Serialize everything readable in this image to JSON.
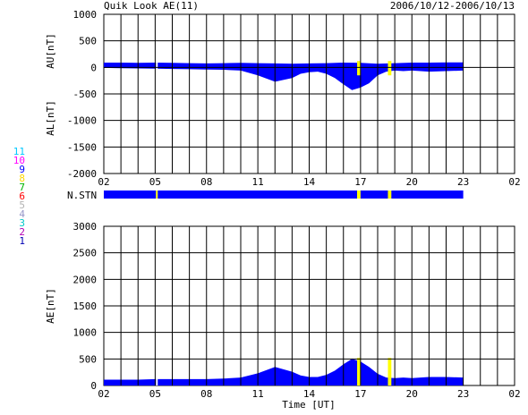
{
  "header": {
    "title": "Quik Look AE(11)",
    "date_range": "2006/10/12-2006/10/13"
  },
  "colors": {
    "fill": "#0000ff",
    "gap": "#ffff00",
    "grid": "#000000",
    "background": "#ffffff"
  },
  "station_legend": [
    {
      "label": "11",
      "color": "#00c8ff"
    },
    {
      "label": "10",
      "color": "#ff00ff"
    },
    {
      "label": "9",
      "color": "#0000ff"
    },
    {
      "label": "8",
      "color": "#ffd700"
    },
    {
      "label": "7",
      "color": "#00b400"
    },
    {
      "label": "6",
      "color": "#ff0000"
    },
    {
      "label": "5",
      "color": "#b4b4b4"
    },
    {
      "label": "4",
      "color": "#9696c8"
    },
    {
      "label": "3",
      "color": "#00c8c8"
    },
    {
      "label": "2",
      "color": "#b400b4"
    },
    {
      "label": "1",
      "color": "#0000b4"
    }
  ],
  "nstn_label": "N.STN",
  "xlabel": "Time [UT]",
  "chart_data": [
    {
      "type": "area",
      "panel": "AU/AL",
      "ylabel_top": "AU[nT]",
      "ylabel_bottom": "AL[nT]",
      "xlim": [
        0,
        24
      ],
      "ylim": [
        -2000,
        1000
      ],
      "x_ticks": [
        "02",
        "05",
        "08",
        "11",
        "14",
        "17",
        "20",
        "23",
        "02"
      ],
      "y_ticks": [
        "1000",
        "500",
        "0",
        "-500",
        "-1000",
        "-1500",
        "-2000"
      ],
      "grid": true,
      "data_end": 21,
      "gaps": [
        [
          3.05,
          3.15
        ],
        [
          14.8,
          15.0
        ],
        [
          16.6,
          16.8
        ]
      ],
      "au_series": {
        "name": "AU",
        "x": [
          0,
          1,
          2,
          3,
          4,
          5,
          6,
          7,
          8,
          9,
          10,
          11,
          12,
          13,
          14,
          15,
          16,
          17,
          18,
          19,
          20,
          21
        ],
        "values": [
          90,
          90,
          85,
          90,
          85,
          80,
          75,
          80,
          85,
          80,
          75,
          70,
          75,
          80,
          90,
          85,
          70,
          80,
          90,
          90,
          95,
          95
        ]
      },
      "al_series": {
        "name": "AL",
        "x": [
          0,
          1,
          2,
          3,
          4,
          5,
          6,
          7,
          8,
          9,
          10,
          11,
          11.5,
          12,
          12.5,
          13,
          13.5,
          14,
          14.5,
          15,
          15.5,
          16,
          16.5,
          17,
          17.5,
          18,
          19,
          20,
          21
        ],
        "values": [
          -10,
          -15,
          -20,
          -25,
          -30,
          -35,
          -40,
          -45,
          -60,
          -150,
          -270,
          -200,
          -120,
          -90,
          -80,
          -120,
          -200,
          -320,
          -430,
          -380,
          -300,
          -150,
          -80,
          -60,
          -70,
          -60,
          -80,
          -70,
          -60
        ]
      }
    },
    {
      "type": "bar",
      "panel": "N.STN",
      "xlim": [
        0,
        24
      ],
      "segments": [
        {
          "start": 0,
          "end": 3.05,
          "status": "data"
        },
        {
          "start": 3.05,
          "end": 3.15,
          "status": "gap"
        },
        {
          "start": 3.15,
          "end": 14.8,
          "status": "data"
        },
        {
          "start": 14.8,
          "end": 15.0,
          "status": "gap"
        },
        {
          "start": 15.0,
          "end": 16.6,
          "status": "data"
        },
        {
          "start": 16.6,
          "end": 16.8,
          "status": "gap"
        },
        {
          "start": 16.8,
          "end": 21.0,
          "status": "data"
        }
      ]
    },
    {
      "type": "area",
      "panel": "AE",
      "ylabel": "AE[nT]",
      "xlim": [
        0,
        24
      ],
      "ylim": [
        0,
        3000
      ],
      "x_ticks": [
        "02",
        "05",
        "08",
        "11",
        "14",
        "17",
        "20",
        "23",
        "02"
      ],
      "y_ticks": [
        "3000",
        "2500",
        "2000",
        "1500",
        "1000",
        "500",
        "0"
      ],
      "grid": true,
      "data_end": 21,
      "gaps": [
        [
          3.05,
          3.15
        ],
        [
          14.8,
          15.0
        ],
        [
          16.6,
          16.8
        ]
      ],
      "series": [
        {
          "name": "AE",
          "x": [
            0,
            1,
            2,
            3,
            4,
            5,
            6,
            7,
            8,
            9,
            10,
            11,
            11.5,
            12,
            12.5,
            13,
            13.5,
            14,
            14.5,
            15,
            15.5,
            16,
            16.5,
            17,
            17.5,
            18,
            19,
            20,
            21
          ],
          "values": [
            110,
            110,
            110,
            120,
            120,
            120,
            120,
            130,
            150,
            230,
            350,
            260,
            190,
            160,
            160,
            200,
            280,
            400,
            500,
            450,
            350,
            220,
            150,
            140,
            150,
            140,
            160,
            160,
            150
          ]
        }
      ]
    }
  ]
}
